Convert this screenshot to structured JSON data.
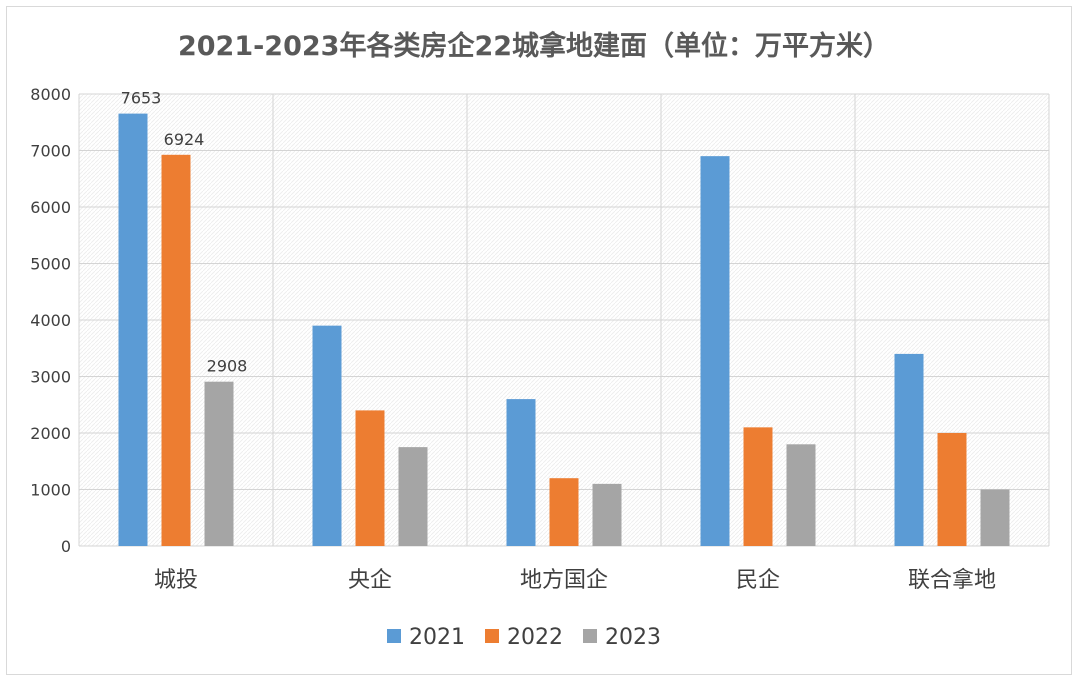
{
  "chart_data": {
    "type": "bar",
    "title": "2021-2023年各类房企22城拿地建面（单位：万平方米）",
    "categories": [
      "城投",
      "央企",
      "地方国企",
      "民企",
      "联合拿地"
    ],
    "series": [
      {
        "name": "2021",
        "color": "#5b9bd5",
        "values": [
          7653,
          3900,
          2600,
          6900,
          3400
        ]
      },
      {
        "name": "2022",
        "color": "#ed7d31",
        "values": [
          6924,
          2400,
          1200,
          2100,
          2000
        ]
      },
      {
        "name": "2023",
        "color": "#a5a5a5",
        "values": [
          2908,
          1750,
          1100,
          1800,
          1000
        ]
      }
    ],
    "data_labels": [
      {
        "series": 0,
        "category": 0,
        "text": "7653"
      },
      {
        "series": 1,
        "category": 0,
        "text": "6924"
      },
      {
        "series": 2,
        "category": 0,
        "text": "2908"
      }
    ],
    "ylim": [
      0,
      8000
    ],
    "ytick_step": 1000,
    "grid": true,
    "legend_position": "bottom"
  }
}
